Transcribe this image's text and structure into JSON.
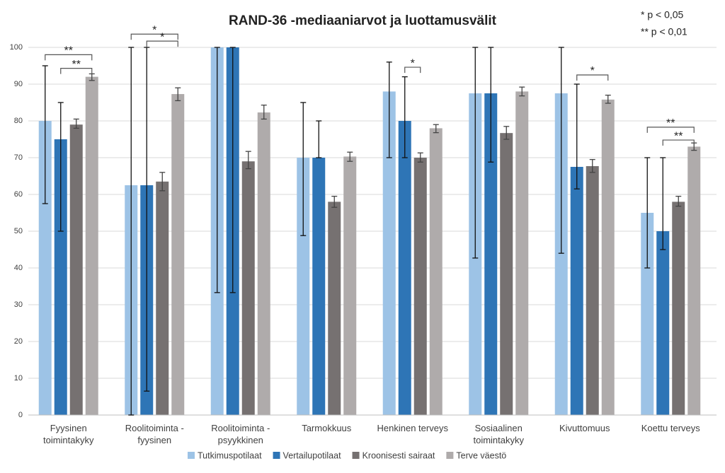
{
  "chart_data": {
    "type": "bar",
    "title": "RAND-36 -mediaaniarvot ja luottamusvälit",
    "notes": [
      "*   p < 0,05",
      "** p < 0,01"
    ],
    "categories": [
      "Fyysinen\ntoimintakyky",
      "Roolitoiminta -\nfyysinen",
      "Roolitoiminta -\npsyykkinen",
      "Tarmokkuus",
      "Henkinen terveys",
      "Sosiaalinen\ntoimintakyky",
      "Kivuttomuus",
      "Koettu terveys"
    ],
    "series": [
      {
        "name": "Tutkimuspotilaat",
        "color": "#9dc3e6",
        "values": [
          80,
          62.5,
          100,
          70,
          88,
          87.5,
          87.5,
          55
        ],
        "lower": [
          57.5,
          0,
          33.3,
          48.8,
          70,
          42.7,
          44,
          40
        ],
        "upper": [
          95,
          100,
          100,
          85,
          96,
          100,
          100,
          70
        ]
      },
      {
        "name": "Vertailupotilaat",
        "color": "#2e75b6",
        "values": [
          75,
          62.5,
          100,
          70,
          80,
          87.5,
          67.5,
          50
        ],
        "lower": [
          50,
          6.5,
          33.3,
          70,
          70,
          68.8,
          61.5,
          45
        ],
        "upper": [
          85,
          100,
          100,
          80,
          92,
          100,
          90,
          70
        ]
      },
      {
        "name": "Kroonisesti sairaat",
        "color": "#767171",
        "values": [
          79,
          63.5,
          69,
          58,
          70,
          76.7,
          67.7,
          58
        ],
        "lower": [
          78,
          61,
          67,
          56.5,
          68.8,
          75,
          66,
          56.8
        ],
        "upper": [
          80.5,
          66,
          71.7,
          59.5,
          71.3,
          78.5,
          69.5,
          59.5
        ]
      },
      {
        "name": "Terve väestö",
        "color": "#afabab",
        "values": [
          92,
          87.3,
          82.3,
          70.3,
          78,
          88,
          85.8,
          73
        ],
        "lower": [
          91,
          85.5,
          80.5,
          69,
          76.8,
          86.8,
          84.8,
          72
        ],
        "upper": [
          92.8,
          89,
          84.3,
          71.5,
          79,
          89.2,
          87,
          74
        ]
      }
    ],
    "annotations": [
      {
        "category": 0,
        "from": 0,
        "to": 3,
        "label": "**",
        "y": 98
      },
      {
        "category": 0,
        "from": 1,
        "to": 3,
        "label": "**",
        "y": 94.3
      },
      {
        "category": 1,
        "from": 0,
        "to": 3,
        "label": "*",
        "y": 103.6
      },
      {
        "category": 1,
        "from": 1,
        "to": 3,
        "label": "*",
        "y": 101.7
      },
      {
        "category": 4,
        "from": 1,
        "to": 2,
        "label": "*",
        "y": 94.6
      },
      {
        "category": 6,
        "from": 1,
        "to": 3,
        "label": "*",
        "y": 92.5
      },
      {
        "category": 7,
        "from": 0,
        "to": 3,
        "label": "**",
        "y": 78.3
      },
      {
        "category": 7,
        "from": 1,
        "to": 3,
        "label": "**",
        "y": 74.8
      }
    ],
    "ylim": [
      0,
      100
    ],
    "yticks": [
      0,
      10,
      20,
      30,
      40,
      50,
      60,
      70,
      80,
      90,
      100
    ],
    "grid": true
  }
}
